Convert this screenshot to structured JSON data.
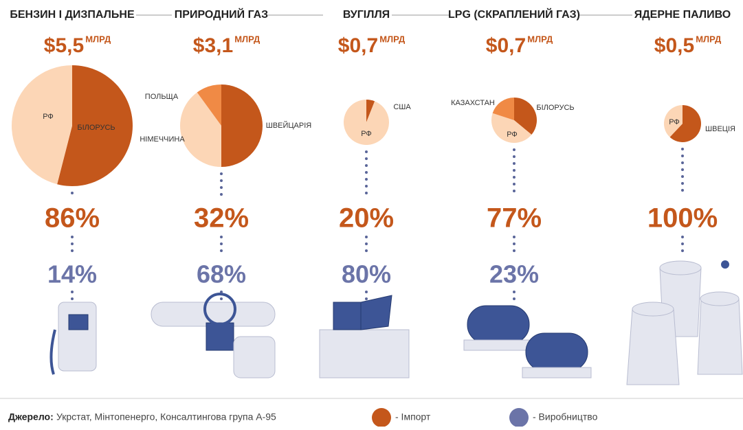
{
  "columns": [
    {
      "title": "БЕНЗИН І ДИЗПАЛЬНЕ",
      "amount": "$5,5",
      "unit": "МЛРД",
      "pie": [
        {
          "label": "БІЛОРУСЬ",
          "value": 54,
          "color": "#c4571b"
        },
        {
          "label": "РФ",
          "value": 46,
          "color": "#fcd6b6"
        }
      ],
      "import": "86%",
      "production": "14%"
    },
    {
      "title": "ПРИРОДНИЙ ГАЗ",
      "amount": "$3,1",
      "unit": "МЛРД",
      "pie": [
        {
          "label": "ШВЕЙЦАРІЯ",
          "value": 50,
          "color": "#c4571b"
        },
        {
          "label": "НІМЕЧЧИНА",
          "value": 40,
          "color": "#fcd6b6"
        },
        {
          "label": "ПОЛЬЩА",
          "value": 10,
          "color": "#f08a45"
        }
      ],
      "import": "32%",
      "production": "68%"
    },
    {
      "title": "ВУГІЛЛЯ",
      "amount": "$0,7",
      "unit": "МЛРД",
      "pie": [
        {
          "label": "США",
          "value": 6,
          "color": "#c4571b"
        },
        {
          "label": "РФ",
          "value": 94,
          "color": "#fcd6b6"
        }
      ],
      "import": "20%",
      "production": "80%"
    },
    {
      "title": "LPG (СКРАПЛЕНИЙ ГАЗ)",
      "amount": "$0,7",
      "unit": "МЛРД",
      "pie": [
        {
          "label": "БІЛОРУСЬ",
          "value": 36,
          "color": "#c4571b"
        },
        {
          "label": "РФ",
          "value": 44,
          "color": "#fcd6b6"
        },
        {
          "label": "КАЗАХСТАН",
          "value": 20,
          "color": "#f08a45"
        }
      ],
      "import": "77%",
      "production": "23%"
    },
    {
      "title": "ЯДЕРНЕ ПАЛИВО",
      "amount": "$0,5",
      "unit": "МЛРД",
      "pie": [
        {
          "label": "ШВЕЦІЯ",
          "value": 62,
          "color": "#c4571b"
        },
        {
          "label": "РФ",
          "value": 38,
          "color": "#fcd6b6"
        }
      ],
      "import": "100%",
      "production": null
    }
  ],
  "source": {
    "label": "Джерело:",
    "text": "Укрстат, Мінтопенерго, Консалтингова група А-95"
  },
  "legend": [
    {
      "label": "- Імпорт",
      "color": "#c4571b"
    },
    {
      "label": "- Виробництво",
      "color": "#6b74a8"
    }
  ]
}
